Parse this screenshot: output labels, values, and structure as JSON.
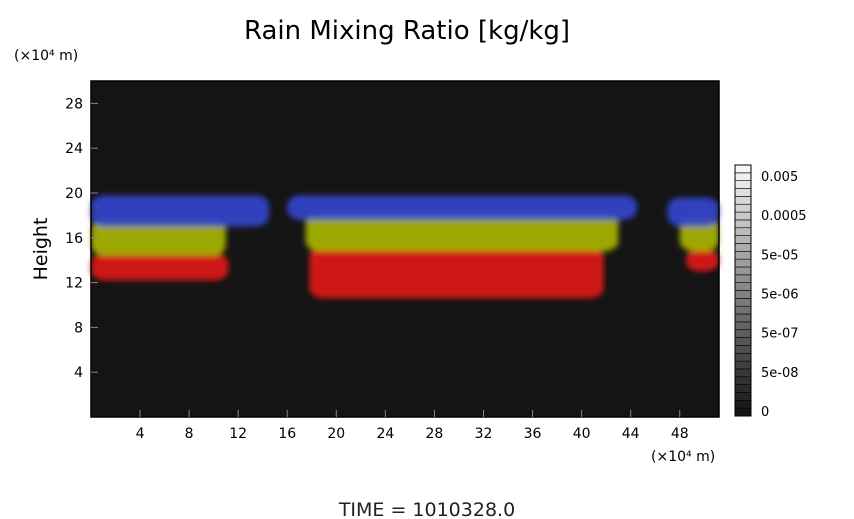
{
  "chart_data": {
    "type": "heatmap",
    "title": "Rain Mixing Ratio [kg/kg]",
    "ylabel": "Height",
    "x_unit": "(×10⁴ m)",
    "y_unit": "(×10⁴ m)",
    "xlim": [
      0,
      51.2
    ],
    "ylim": [
      0,
      30
    ],
    "x_ticks": [
      4,
      8,
      12,
      16,
      20,
      24,
      28,
      32,
      36,
      40,
      44,
      48
    ],
    "y_ticks": [
      4,
      8,
      12,
      16,
      20,
      24,
      28
    ],
    "colorbar": {
      "levels": [
        "0.005",
        "0.0005",
        "5e-05",
        "5e-06",
        "5e-07",
        "5e-08",
        "0"
      ],
      "colors": {
        "lowest": "#000000",
        "highest": "#ffffff"
      }
    },
    "layers": [
      {
        "name": "red",
        "color": "#e01818",
        "bands": [
          {
            "x0": 0,
            "x1": 11.2,
            "y0": 12.2,
            "y1": 14.6
          },
          {
            "x0": 17.8,
            "x1": 41.8,
            "y0": 10.6,
            "y1": 15.2
          },
          {
            "x0": 48.5,
            "x1": 51.2,
            "y0": 13.0,
            "y1": 15.0
          }
        ]
      },
      {
        "name": "yellow",
        "color": "#a8b400",
        "bands": [
          {
            "x0": 0,
            "x1": 11.0,
            "y0": 14.4,
            "y1": 17.6
          },
          {
            "x0": 17.5,
            "x1": 43.0,
            "y0": 14.8,
            "y1": 18.2
          },
          {
            "x0": 48.0,
            "x1": 51.2,
            "y0": 14.8,
            "y1": 17.8
          }
        ]
      },
      {
        "name": "blue",
        "color": "#3344cc",
        "bands": [
          {
            "x0": 0,
            "x1": 14.5,
            "y0": 17.0,
            "y1": 19.8
          },
          {
            "x0": 16.0,
            "x1": 44.5,
            "y0": 17.6,
            "y1": 19.8
          },
          {
            "x0": 47.0,
            "x1": 51.2,
            "y0": 17.0,
            "y1": 19.6
          }
        ]
      }
    ],
    "background_color": "#141414"
  },
  "footer": {
    "time_label": "TIME = 1010328.0"
  }
}
